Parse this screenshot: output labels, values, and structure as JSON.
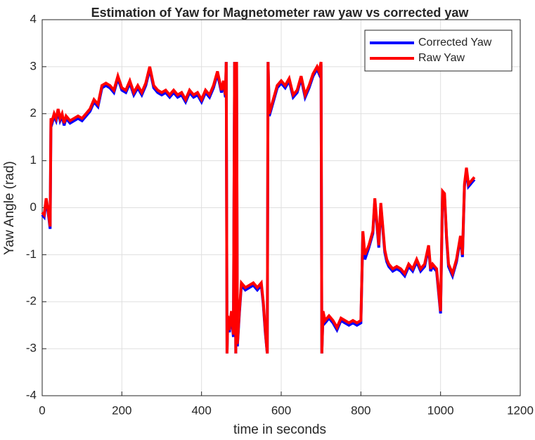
{
  "chart_data": {
    "type": "line",
    "title": "Estimation of Yaw for Magnetometer raw yaw vs corrected yaw",
    "x_label": "time in seconds",
    "y_label": "Yaw Angle (rad)",
    "x": [
      0,
      5,
      10,
      15,
      20,
      22,
      25,
      30,
      35,
      40,
      45,
      50,
      55,
      60,
      70,
      80,
      90,
      100,
      110,
      120,
      130,
      140,
      150,
      160,
      170,
      180,
      190,
      200,
      210,
      220,
      230,
      240,
      250,
      260,
      270,
      280,
      290,
      300,
      310,
      320,
      330,
      340,
      350,
      360,
      370,
      380,
      390,
      400,
      410,
      420,
      430,
      440,
      450,
      455,
      460,
      462,
      464,
      466,
      470,
      475,
      480,
      483,
      486,
      488,
      490,
      495,
      500,
      510,
      520,
      530,
      540,
      550,
      555,
      560,
      565,
      567,
      570,
      580,
      590,
      600,
      610,
      620,
      630,
      640,
      650,
      660,
      670,
      680,
      690,
      695,
      700,
      702,
      705,
      710,
      720,
      730,
      740,
      750,
      760,
      770,
      780,
      790,
      800,
      805,
      810,
      820,
      830,
      835,
      840,
      845,
      850,
      860,
      865,
      870,
      880,
      890,
      900,
      910,
      920,
      930,
      940,
      950,
      960,
      970,
      975,
      980,
      990,
      1000,
      1005,
      1010,
      1015,
      1020,
      1030,
      1040,
      1050,
      1055,
      1060,
      1065,
      1070,
      1080,
      1085
    ],
    "series": [
      {
        "name": "Corrected Yaw",
        "color": "#0000ff",
        "values": [
          -0.15,
          -0.2,
          0.15,
          -0.1,
          -0.45,
          1.85,
          1.8,
          1.95,
          1.85,
          2.05,
          1.85,
          1.95,
          1.75,
          1.9,
          1.8,
          1.85,
          1.9,
          1.85,
          1.95,
          2.05,
          2.25,
          2.15,
          2.55,
          2.6,
          2.55,
          2.45,
          2.75,
          2.5,
          2.45,
          2.65,
          2.4,
          2.55,
          2.4,
          2.6,
          2.95,
          2.55,
          2.45,
          2.4,
          2.45,
          2.35,
          2.45,
          2.35,
          2.4,
          2.25,
          2.45,
          2.35,
          2.4,
          2.25,
          2.45,
          2.35,
          2.55,
          2.85,
          2.45,
          2.65,
          2.35,
          3.1,
          -3.1,
          -2.35,
          -2.65,
          -2.25,
          -2.75,
          3.1,
          -3.1,
          3.1,
          -2.95,
          -2.25,
          -1.65,
          -1.75,
          -1.7,
          -1.65,
          -1.75,
          -1.65,
          -2.05,
          -2.65,
          -3.1,
          3.1,
          1.95,
          2.25,
          2.55,
          2.65,
          2.55,
          2.7,
          2.35,
          2.45,
          2.75,
          2.35,
          2.55,
          2.8,
          2.95,
          2.85,
          3.05,
          -3.1,
          -2.25,
          -2.45,
          -2.35,
          -2.45,
          -2.6,
          -2.4,
          -2.45,
          -2.5,
          -2.45,
          -2.5,
          -2.45,
          -0.55,
          -1.1,
          -0.85,
          -0.55,
          0.15,
          -0.35,
          -0.85,
          0.05,
          -0.95,
          -1.15,
          -1.25,
          -1.35,
          -1.3,
          -1.35,
          -1.45,
          -1.25,
          -1.35,
          -1.15,
          -1.35,
          -1.25,
          -0.85,
          -1.35,
          -1.25,
          -1.35,
          -2.25,
          0.3,
          0.25,
          -0.65,
          -1.25,
          -1.45,
          -1.15,
          -0.65,
          -1.05,
          0.45,
          0.8,
          0.45,
          0.55,
          0.6
        ]
      },
      {
        "name": "Raw Yaw",
        "color": "#ff0000",
        "values": [
          -0.1,
          -0.15,
          0.2,
          -0.05,
          -0.4,
          1.9,
          1.85,
          2.0,
          1.9,
          2.1,
          1.9,
          2.0,
          1.8,
          1.95,
          1.85,
          1.9,
          1.95,
          1.9,
          2.0,
          2.1,
          2.3,
          2.2,
          2.6,
          2.65,
          2.6,
          2.5,
          2.8,
          2.55,
          2.5,
          2.7,
          2.45,
          2.6,
          2.45,
          2.65,
          3.0,
          2.6,
          2.5,
          2.45,
          2.5,
          2.4,
          2.5,
          2.4,
          2.45,
          2.3,
          2.5,
          2.4,
          2.45,
          2.3,
          2.5,
          2.4,
          2.6,
          2.9,
          2.5,
          2.7,
          2.4,
          3.1,
          -3.1,
          -2.3,
          -2.6,
          -2.2,
          -2.7,
          3.1,
          -3.1,
          3.1,
          -2.9,
          -2.2,
          -1.6,
          -1.7,
          -1.65,
          -1.6,
          -1.7,
          -1.6,
          -2.0,
          -2.6,
          -3.1,
          3.1,
          2.0,
          2.3,
          2.6,
          2.7,
          2.6,
          2.75,
          2.4,
          2.5,
          2.8,
          2.4,
          2.6,
          2.85,
          3.0,
          2.9,
          3.1,
          -3.1,
          -2.2,
          -2.4,
          -2.3,
          -2.4,
          -2.55,
          -2.35,
          -2.4,
          -2.45,
          -2.4,
          -2.45,
          -2.4,
          -0.5,
          -1.0,
          -0.8,
          -0.5,
          0.2,
          -0.3,
          -0.8,
          0.1,
          -0.9,
          -1.1,
          -1.2,
          -1.3,
          -1.25,
          -1.3,
          -1.4,
          -1.2,
          -1.3,
          -1.1,
          -1.3,
          -1.2,
          -0.8,
          -1.3,
          -1.2,
          -1.3,
          -2.2,
          0.35,
          0.3,
          -0.6,
          -1.2,
          -1.4,
          -1.1,
          -0.6,
          -1.0,
          0.5,
          0.85,
          0.5,
          0.6,
          0.65
        ]
      }
    ],
    "xlim": [
      0,
      1200
    ],
    "xticks": [
      0,
      200,
      400,
      600,
      800,
      1000,
      1200
    ],
    "ylim": [
      -4,
      4
    ],
    "yticks": [
      -4,
      -3,
      -2,
      -1,
      0,
      1,
      2,
      3,
      4
    ],
    "grid": true,
    "legend": "upper right"
  }
}
